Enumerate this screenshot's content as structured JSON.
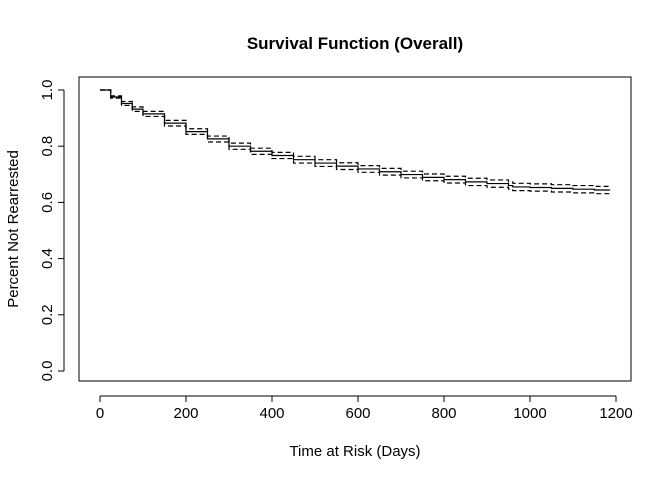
{
  "chart_data": {
    "type": "line",
    "title": "Survival Function (Overall)",
    "xlabel": "Time at Risk (Days)",
    "ylabel": "Percent Not Rearrested",
    "xlim": [
      0,
      1200
    ],
    "ylim": [
      0,
      1
    ],
    "x_ticks": [
      "0",
      "200",
      "400",
      "600",
      "800",
      "1000",
      "1200"
    ],
    "y_ticks": [
      "0.0",
      "0.2",
      "0.4",
      "0.6",
      "0.8",
      "1.0"
    ],
    "grid": false,
    "legend": "none",
    "series": [
      {
        "role": "estimate",
        "line_style": "solid",
        "x": [
          0,
          25,
          50,
          75,
          100,
          150,
          200,
          250,
          300,
          350,
          400,
          450,
          500,
          550,
          600,
          650,
          700,
          750,
          800,
          850,
          900,
          950,
          960,
          1000,
          1050,
          1100,
          1150,
          1185
        ],
        "y": [
          1.0,
          0.975,
          0.952,
          0.932,
          0.915,
          0.882,
          0.852,
          0.826,
          0.8,
          0.782,
          0.767,
          0.752,
          0.74,
          0.729,
          0.719,
          0.709,
          0.699,
          0.689,
          0.681,
          0.673,
          0.667,
          0.66,
          0.655,
          0.653,
          0.65,
          0.647,
          0.644,
          0.643
        ]
      },
      {
        "role": "upper-ci",
        "line_style": "dashed",
        "x": [
          0,
          25,
          50,
          75,
          100,
          150,
          200,
          250,
          300,
          350,
          400,
          450,
          500,
          550,
          600,
          650,
          700,
          750,
          800,
          850,
          900,
          950,
          960,
          1000,
          1050,
          1100,
          1150,
          1185
        ],
        "y": [
          1.0,
          0.979,
          0.959,
          0.94,
          0.924,
          0.892,
          0.862,
          0.836,
          0.811,
          0.793,
          0.778,
          0.764,
          0.752,
          0.741,
          0.731,
          0.721,
          0.711,
          0.701,
          0.693,
          0.686,
          0.68,
          0.673,
          0.668,
          0.666,
          0.663,
          0.66,
          0.657,
          0.656
        ]
      },
      {
        "role": "lower-ci",
        "line_style": "dashed",
        "x": [
          0,
          25,
          50,
          75,
          100,
          150,
          200,
          250,
          300,
          350,
          400,
          450,
          500,
          550,
          600,
          650,
          700,
          750,
          800,
          850,
          900,
          950,
          960,
          1000,
          1050,
          1100,
          1150,
          1185
        ],
        "y": [
          1.0,
          0.971,
          0.945,
          0.924,
          0.906,
          0.872,
          0.842,
          0.815,
          0.789,
          0.771,
          0.756,
          0.74,
          0.728,
          0.717,
          0.707,
          0.697,
          0.687,
          0.677,
          0.669,
          0.66,
          0.654,
          0.647,
          0.642,
          0.64,
          0.637,
          0.634,
          0.631,
          0.63
        ]
      }
    ]
  }
}
